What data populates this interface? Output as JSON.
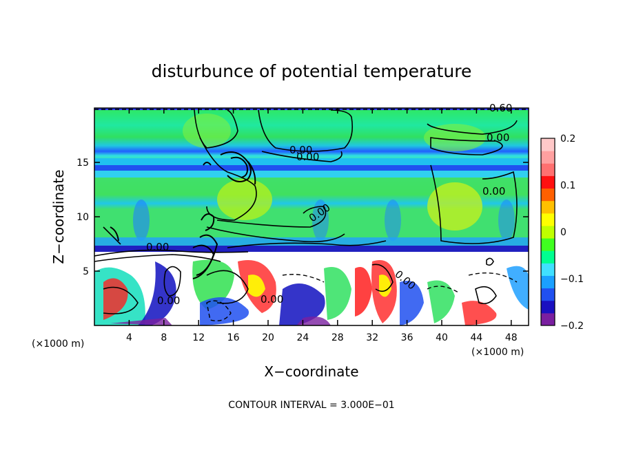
{
  "chart_data": {
    "type": "heatmap",
    "title": "disturbunce of potential temperature",
    "xlabel": "X−coordinate",
    "ylabel": "Z−coordinate",
    "x_unit_left": "(×1000 m)",
    "x_unit_right": "(×1000 m)",
    "xlim": [
      0,
      50
    ],
    "ylim": [
      0,
      20
    ],
    "x_ticks": [
      4,
      8,
      12,
      16,
      20,
      24,
      28,
      32,
      36,
      40,
      44,
      48
    ],
    "x_tick_labels": [
      "4",
      "8",
      "12",
      "16",
      "20",
      "24",
      "28",
      "32",
      "36",
      "40",
      "44",
      "48"
    ],
    "y_ticks": [
      5,
      10,
      15
    ],
    "y_tick_labels": [
      "5",
      "10",
      "15"
    ],
    "colorbar": {
      "range": [
        -0.2,
        0.2
      ],
      "ticks": [
        0.2,
        0.1,
        0,
        -0.1,
        -0.2
      ],
      "tick_labels": [
        "0.2",
        "0.1",
        "0",
        "−0.1",
        "−0.2"
      ],
      "colors": [
        "#7a1fa0",
        "#1a10c0",
        "#2050f0",
        "#1aa0ff",
        "#40e0ff",
        "#00ff90",
        "#40ff20",
        "#c0ff00",
        "#ffff00",
        "#ffc000",
        "#ff6000",
        "#ff1010",
        "#ff7070",
        "#ffa0a0",
        "#ffc8c8"
      ]
    },
    "contour_labels": [
      "0.60",
      "0.00",
      "0.00",
      "0.00",
      "0.00",
      "0.00",
      "0.00",
      "0.00",
      "0.00",
      "0.00"
    ],
    "contour_interval_text": "CONTOUR INTERVAL = 3.000E−01",
    "grid": false,
    "legend": "colorbar right"
  }
}
